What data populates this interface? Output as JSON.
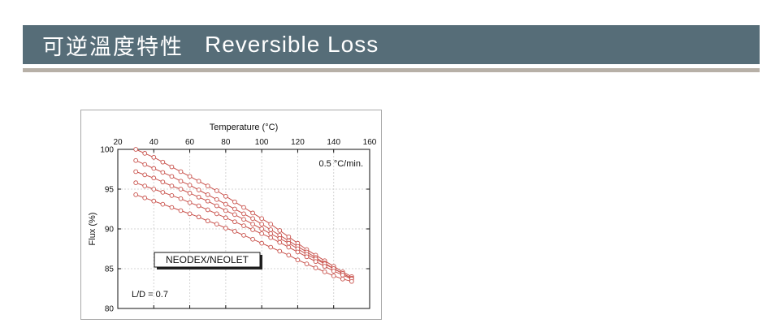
{
  "header": {
    "title_zh": "可逆溫度特性",
    "title_en": "Reversible Loss"
  },
  "colors": {
    "header_bg": "#566d78",
    "header_rule": "#b7b0a7",
    "series": "#c8504a"
  },
  "chart_data": {
    "type": "line",
    "xlabel": "Temperature (°C)",
    "ylabel": "Flux (%)",
    "xlim": [
      20,
      160
    ],
    "ylim": [
      80,
      100
    ],
    "x_ticks": [
      20,
      40,
      60,
      80,
      100,
      120,
      140,
      160
    ],
    "y_ticks": [
      80,
      85,
      90,
      95,
      100
    ],
    "x_axis_position": "top",
    "grid": true,
    "annotations": {
      "rate": "0.5 °C/min.",
      "material": "NEODEX/NEOLET",
      "ratio": "L/D = 0.7"
    },
    "series": [
      {
        "x": [
          30,
          35,
          40,
          45,
          50,
          55,
          60,
          65,
          70,
          75,
          80,
          85,
          90,
          95,
          100,
          105,
          110,
          115,
          120,
          125,
          130,
          135,
          140,
          145,
          150
        ],
        "y": [
          100,
          99.5,
          99.0,
          98.4,
          97.8,
          97.2,
          96.6,
          96.0,
          95.4,
          94.8,
          94.1,
          93.4,
          92.7,
          92.0,
          91.3,
          90.6,
          89.8,
          89.0,
          88.2,
          87.4,
          86.7,
          86.0,
          85.3,
          84.6,
          84.0
        ]
      },
      {
        "x": [
          30,
          35,
          40,
          45,
          50,
          55,
          60,
          65,
          70,
          75,
          80,
          85,
          90,
          95,
          100,
          105,
          110,
          115,
          120,
          125,
          130,
          135,
          140,
          145,
          150
        ],
        "y": [
          98.6,
          98.1,
          97.6,
          97.1,
          96.6,
          96.0,
          95.5,
          94.9,
          94.3,
          93.7,
          93.1,
          92.5,
          91.9,
          91.3,
          90.6,
          89.9,
          89.2,
          88.5,
          87.8,
          87.1,
          86.4,
          85.7,
          85.0,
          84.4,
          83.8
        ]
      },
      {
        "x": [
          30,
          35,
          40,
          45,
          50,
          55,
          60,
          65,
          70,
          75,
          80,
          85,
          90,
          95,
          100,
          105,
          110,
          115,
          120,
          125,
          130,
          135,
          140,
          145,
          150
        ],
        "y": [
          97.2,
          96.8,
          96.4,
          95.9,
          95.4,
          95.0,
          94.5,
          94.0,
          93.5,
          92.9,
          92.3,
          91.8,
          91.2,
          90.6,
          90.0,
          89.4,
          88.8,
          88.2,
          87.5,
          86.8,
          86.2,
          85.6,
          85.0,
          84.4,
          83.8
        ]
      },
      {
        "x": [
          30,
          35,
          40,
          45,
          50,
          55,
          60,
          65,
          70,
          75,
          80,
          85,
          90,
          95,
          100,
          105,
          110,
          115,
          120,
          125,
          130,
          135,
          140,
          145,
          150
        ],
        "y": [
          95.8,
          95.4,
          95.0,
          94.6,
          94.2,
          93.8,
          93.3,
          92.9,
          92.4,
          91.9,
          91.4,
          90.9,
          90.4,
          89.9,
          89.4,
          88.9,
          88.3,
          87.7,
          87.1,
          86.5,
          85.9,
          85.3,
          84.7,
          84.2,
          83.7
        ]
      },
      {
        "x": [
          30,
          35,
          40,
          45,
          50,
          55,
          60,
          65,
          70,
          75,
          80,
          85,
          90,
          95,
          100,
          105,
          110,
          115,
          120,
          125,
          130,
          135,
          140,
          145,
          150
        ],
        "y": [
          94.3,
          93.9,
          93.5,
          93.1,
          92.7,
          92.3,
          91.9,
          91.5,
          91.0,
          90.6,
          90.1,
          89.7,
          89.2,
          88.7,
          88.2,
          87.7,
          87.2,
          86.7,
          86.1,
          85.6,
          85.1,
          84.6,
          84.1,
          83.7,
          83.4
        ]
      }
    ]
  }
}
